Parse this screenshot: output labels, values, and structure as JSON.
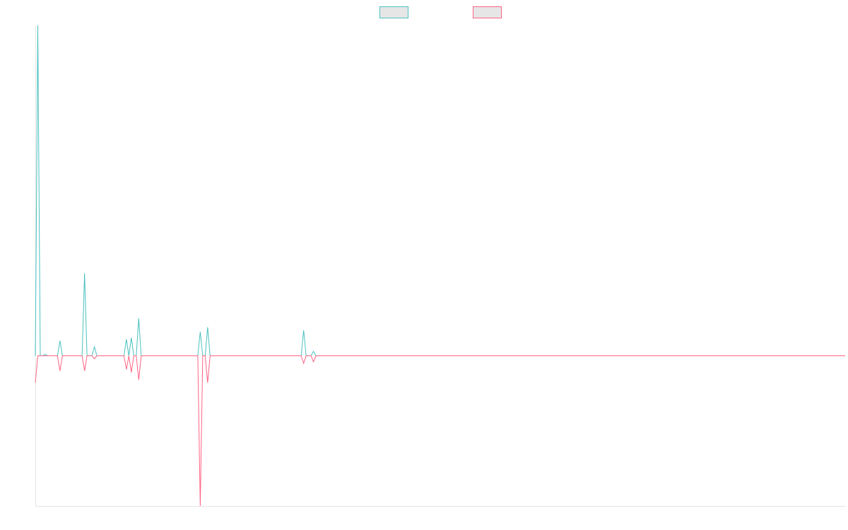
{
  "chart_data": {
    "type": "line",
    "title": "",
    "xlabel": "",
    "ylabel": "",
    "grid": false,
    "legend": "top-center",
    "x_count": 330,
    "ylim": [
      -100,
      220
    ],
    "series": [
      {
        "color": "#4bc0c0",
        "fill": "#e6e6e6",
        "points": [
          [
            0,
            0
          ],
          [
            1,
            220
          ],
          [
            2,
            0
          ],
          [
            3,
            0
          ],
          [
            4,
            1
          ],
          [
            5,
            0
          ],
          [
            6,
            0
          ],
          [
            7,
            0
          ],
          [
            8,
            0
          ],
          [
            9,
            0
          ],
          [
            10,
            10
          ],
          [
            11,
            0
          ],
          [
            12,
            0
          ],
          [
            13,
            0
          ],
          [
            14,
            0
          ],
          [
            15,
            0
          ],
          [
            16,
            0
          ],
          [
            17,
            0
          ],
          [
            18,
            0
          ],
          [
            19,
            0
          ],
          [
            20,
            55
          ],
          [
            21,
            0
          ],
          [
            22,
            0
          ],
          [
            23,
            0
          ],
          [
            24,
            6
          ],
          [
            25,
            0
          ],
          [
            26,
            0
          ],
          [
            27,
            0
          ],
          [
            28,
            0
          ],
          [
            29,
            0
          ],
          [
            30,
            0
          ],
          [
            31,
            0
          ],
          [
            32,
            0
          ],
          [
            33,
            0
          ],
          [
            34,
            0
          ],
          [
            35,
            0
          ],
          [
            36,
            0
          ],
          [
            37,
            11
          ],
          [
            38,
            0
          ],
          [
            39,
            12
          ],
          [
            40,
            0
          ],
          [
            41,
            0
          ],
          [
            42,
            25
          ],
          [
            43,
            0
          ],
          [
            44,
            0
          ],
          [
            66,
            0
          ],
          [
            67,
            16
          ],
          [
            68,
            0
          ],
          [
            69,
            0
          ],
          [
            70,
            19
          ],
          [
            71,
            0
          ],
          [
            72,
            0
          ],
          [
            73,
            0
          ],
          [
            74,
            0
          ],
          [
            108,
            0
          ],
          [
            109,
            17
          ],
          [
            110,
            0
          ],
          [
            111,
            0
          ],
          [
            112,
            0
          ],
          [
            113,
            3
          ],
          [
            114,
            0
          ],
          [
            115,
            0
          ],
          [
            329,
            0
          ]
        ]
      },
      {
        "color": "#ff6384",
        "fill": "#e6e6e6",
        "points": [
          [
            0,
            -18
          ],
          [
            1,
            0
          ],
          [
            2,
            0
          ],
          [
            3,
            0
          ],
          [
            4,
            0
          ],
          [
            5,
            0
          ],
          [
            6,
            0
          ],
          [
            7,
            0
          ],
          [
            8,
            0
          ],
          [
            9,
            0
          ],
          [
            10,
            -10
          ],
          [
            11,
            0
          ],
          [
            12,
            0
          ],
          [
            13,
            0
          ],
          [
            14,
            0
          ],
          [
            15,
            0
          ],
          [
            16,
            0
          ],
          [
            17,
            0
          ],
          [
            18,
            0
          ],
          [
            19,
            0
          ],
          [
            20,
            -10
          ],
          [
            21,
            0
          ],
          [
            22,
            0
          ],
          [
            23,
            0
          ],
          [
            24,
            -2
          ],
          [
            25,
            0
          ],
          [
            26,
            0
          ],
          [
            27,
            0
          ],
          [
            28,
            0
          ],
          [
            29,
            0
          ],
          [
            30,
            0
          ],
          [
            31,
            0
          ],
          [
            32,
            0
          ],
          [
            33,
            0
          ],
          [
            34,
            0
          ],
          [
            35,
            0
          ],
          [
            36,
            0
          ],
          [
            37,
            -9
          ],
          [
            38,
            0
          ],
          [
            39,
            -11
          ],
          [
            40,
            0
          ],
          [
            41,
            0
          ],
          [
            42,
            -16
          ],
          [
            43,
            0
          ],
          [
            44,
            0
          ],
          [
            66,
            0
          ],
          [
            67,
            -100
          ],
          [
            68,
            0
          ],
          [
            69,
            0
          ],
          [
            70,
            -18
          ],
          [
            71,
            0
          ],
          [
            72,
            0
          ],
          [
            73,
            0
          ],
          [
            74,
            0
          ],
          [
            108,
            0
          ],
          [
            109,
            -5
          ],
          [
            110,
            0
          ],
          [
            111,
            0
          ],
          [
            112,
            0
          ],
          [
            113,
            -4
          ],
          [
            114,
            0
          ],
          [
            115,
            0
          ],
          [
            329,
            0
          ]
        ]
      }
    ]
  }
}
